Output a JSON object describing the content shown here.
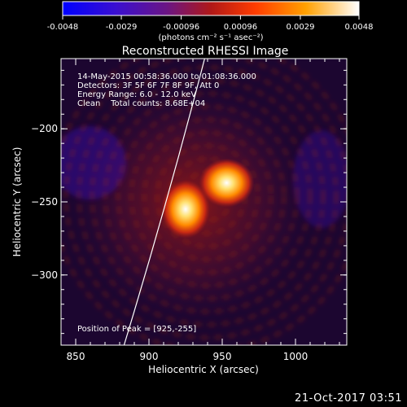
{
  "chart_data": [
    {
      "type": "colorbar",
      "ticks": [
        "-0.0048",
        "-0.0029",
        "-0.00096",
        "0.00096",
        "0.0029",
        "0.0048"
      ],
      "tick_values": [
        -0.0048,
        -0.0029,
        -0.00096,
        0.00096,
        0.0029,
        0.0048
      ],
      "range": [
        -0.0048,
        0.0048
      ],
      "unit_label": "(photons cm⁻² s⁻¹ asec⁻²)",
      "colors": [
        "#0000ff",
        "#4b0fa8",
        "#a01428",
        "#ff3c00",
        "#ffa800",
        "#ffffff"
      ]
    },
    {
      "type": "heatmap",
      "title": "Reconstructed RHESSI Image",
      "xlabel": "Heliocentric X (arcsec)",
      "ylabel": "Heliocentric Y (arcsec)",
      "xlim": [
        840,
        1035
      ],
      "ylim": [
        -348,
        -152
      ],
      "xticks": [
        850,
        900,
        950,
        1000
      ],
      "yticks": [
        -200,
        -250,
        -300
      ],
      "info_lines": [
        "14-May-2015 00:58:36.000 to 01:08:36.000",
        "Detectors: 3F 5F 6F 7F 8F 9F, Att 0",
        "Energy Range: 6.0 - 12.0 keV",
        "Clean    Total counts: 8.68E+04"
      ],
      "peak_label": "Position of Peak = [925,-255]",
      "sources": [
        {
          "x": 925,
          "y": -255
        },
        {
          "x": 953,
          "y": -237
        }
      ],
      "limb_x_at_y_bottom": 883,
      "limb_x_at_y_top": 938
    }
  ],
  "footer": {
    "date": "21-Oct-2017 03:51"
  }
}
